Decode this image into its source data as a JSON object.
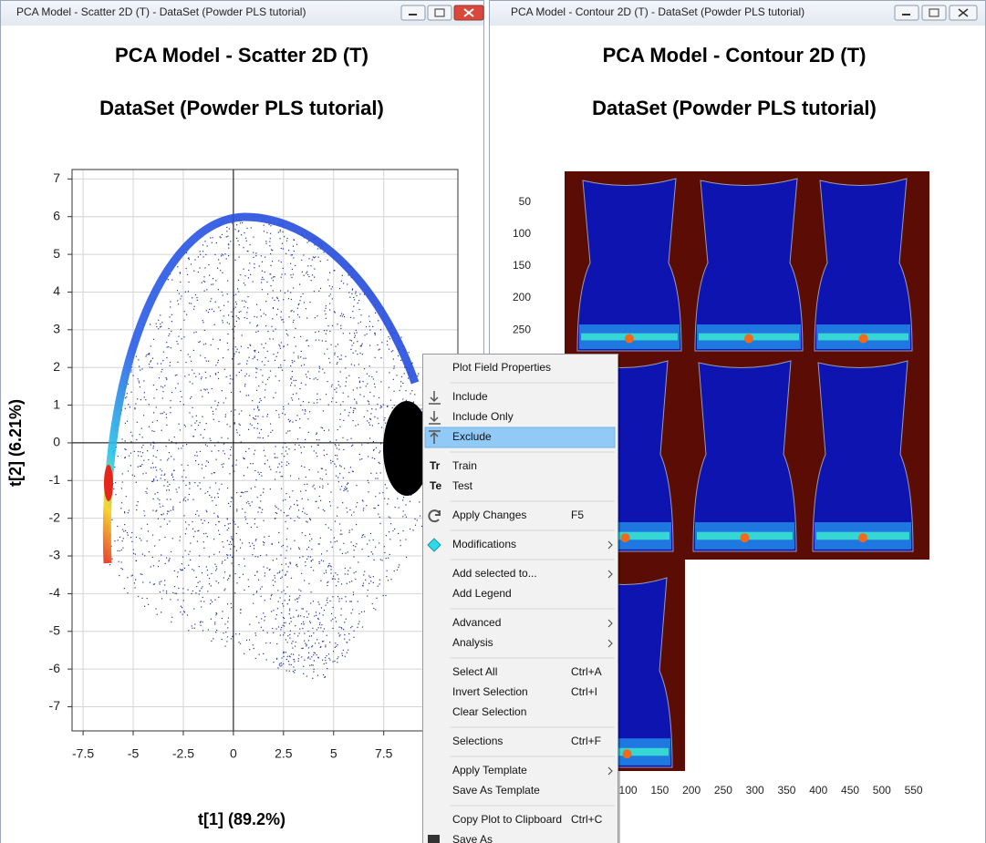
{
  "windows": [
    {
      "title": "PCA Model - Scatter 2D (T) - DataSet (Powder PLS tutorial)",
      "chart": {
        "type": "scatter",
        "title": "PCA Model - Scatter 2D (T)",
        "subtitle": "DataSet (Powder PLS tutorial)",
        "x_label": "t[1] (89.2%)",
        "y_label": "t[2] (6.21%)",
        "xlim": [
          -8.05,
          11.2
        ],
        "ylim": [
          -7.64,
          7.25
        ],
        "xticks": [
          -7.5,
          -5,
          -2.5,
          0,
          2.5,
          5,
          7.5
        ],
        "yticks": [
          -7,
          -6,
          -5,
          -4,
          -3,
          -2,
          -1,
          0,
          1,
          2,
          3,
          4,
          5,
          6,
          7
        ],
        "grid": true
      }
    },
    {
      "title": "PCA Model - Contour 2D (T) - DataSet (Powder PLS tutorial)",
      "chart": {
        "type": "contour",
        "title": "PCA Model - Contour 2D (T)",
        "subtitle": "DataSet (Powder PLS tutorial)",
        "xlim": [
          0,
          575
        ],
        "ylim": [
          0,
          941
        ],
        "xticks": [
          100,
          150,
          200,
          250,
          300,
          350,
          400,
          450,
          500,
          550
        ],
        "yticks": [
          50,
          100,
          150,
          200,
          250
        ]
      }
    }
  ],
  "context_menu": {
    "groups": [
      [
        {
          "label": "Plot Field Properties"
        }
      ],
      [
        {
          "label": "Include"
        },
        {
          "label": "Include Only"
        },
        {
          "label": "Exclude",
          "highlighted": true
        }
      ],
      [
        {
          "label": "Train",
          "icon": "Tr"
        },
        {
          "label": "Test",
          "icon": "Te"
        }
      ],
      [
        {
          "label": "Apply Changes",
          "shortcut": "F5"
        }
      ],
      [
        {
          "label": "Modifications",
          "submenu": true
        }
      ],
      [
        {
          "label": "Add selected to...",
          "submenu": true
        },
        {
          "label": "Add Legend"
        }
      ],
      [
        {
          "label": "Advanced",
          "submenu": true
        },
        {
          "label": "Analysis",
          "submenu": true
        }
      ],
      [
        {
          "label": "Select All",
          "shortcut": "Ctrl+A"
        },
        {
          "label": "Invert Selection",
          "shortcut": "Ctrl+I"
        },
        {
          "label": "Clear Selection"
        }
      ],
      [
        {
          "label": "Selections",
          "shortcut": "Ctrl+F"
        }
      ],
      [
        {
          "label": "Apply Template",
          "submenu": true
        },
        {
          "label": "Save As Template"
        }
      ],
      [
        {
          "label": "Copy Plot to Clipboard",
          "shortcut": "Ctrl+C"
        },
        {
          "label": "Save As"
        }
      ]
    ]
  }
}
